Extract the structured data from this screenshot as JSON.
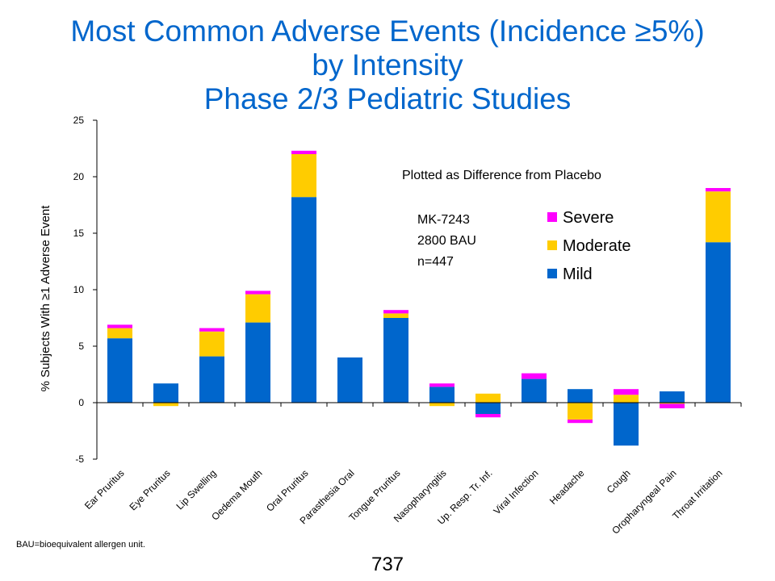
{
  "chart_data": {
    "type": "bar",
    "stacked": true,
    "title": [
      "Most Common Adverse Events (Incidence ≥5%)",
      "by Intensity",
      "Phase 2/3 Pediatric Studies"
    ],
    "ylabel": "% Subjects With ≥1 Adverse Event",
    "ylim": [
      -5,
      25
    ],
    "yticks": [
      "-5",
      "0",
      "5",
      "10",
      "15",
      "20",
      "25"
    ],
    "categories": [
      "Ear Pruritus",
      "Eye Pruritus",
      "Lip Swelling",
      "Oedema Mouth",
      "Oral Pruritus",
      "Parasthesia Oral",
      "Tongue Pruritus",
      "Nasopharyngitis",
      "Up. Resp. Tr. Inf.",
      "Viral Infection",
      "Headache",
      "Cough",
      "Oropharyngeal Pain",
      "Throat Irritation"
    ],
    "series": [
      {
        "name": "Mild",
        "color": "#0066cc",
        "values": [
          5.7,
          1.7,
          4.1,
          7.1,
          18.2,
          4.0,
          7.5,
          1.4,
          -1.0,
          2.1,
          1.2,
          -3.8,
          1.0,
          14.2
        ]
      },
      {
        "name": "Moderate",
        "color": "#ffcc00",
        "values": [
          0.9,
          -0.3,
          2.2,
          2.5,
          3.8,
          0.0,
          0.4,
          -0.3,
          0.8,
          0.0,
          -1.5,
          0.7,
          -0.1,
          4.5
        ]
      },
      {
        "name": "Severe",
        "color": "#ff00ff",
        "values": [
          0.3,
          0.0,
          0.3,
          0.3,
          0.3,
          0.0,
          0.3,
          0.3,
          -0.3,
          0.5,
          -0.3,
          0.5,
          -0.4,
          0.3
        ]
      }
    ],
    "legend_order": [
      "Severe",
      "Moderate",
      "Mild"
    ],
    "legend_position": "top-right",
    "grid": false,
    "annotations": {
      "subtitle": "Plotted as Difference from Placebo",
      "product": "MK-7243",
      "dose": "2800 BAU",
      "n": "n=447"
    }
  },
  "footnote": "BAU=bioequivalent  allergen unit.",
  "page_number": "737"
}
